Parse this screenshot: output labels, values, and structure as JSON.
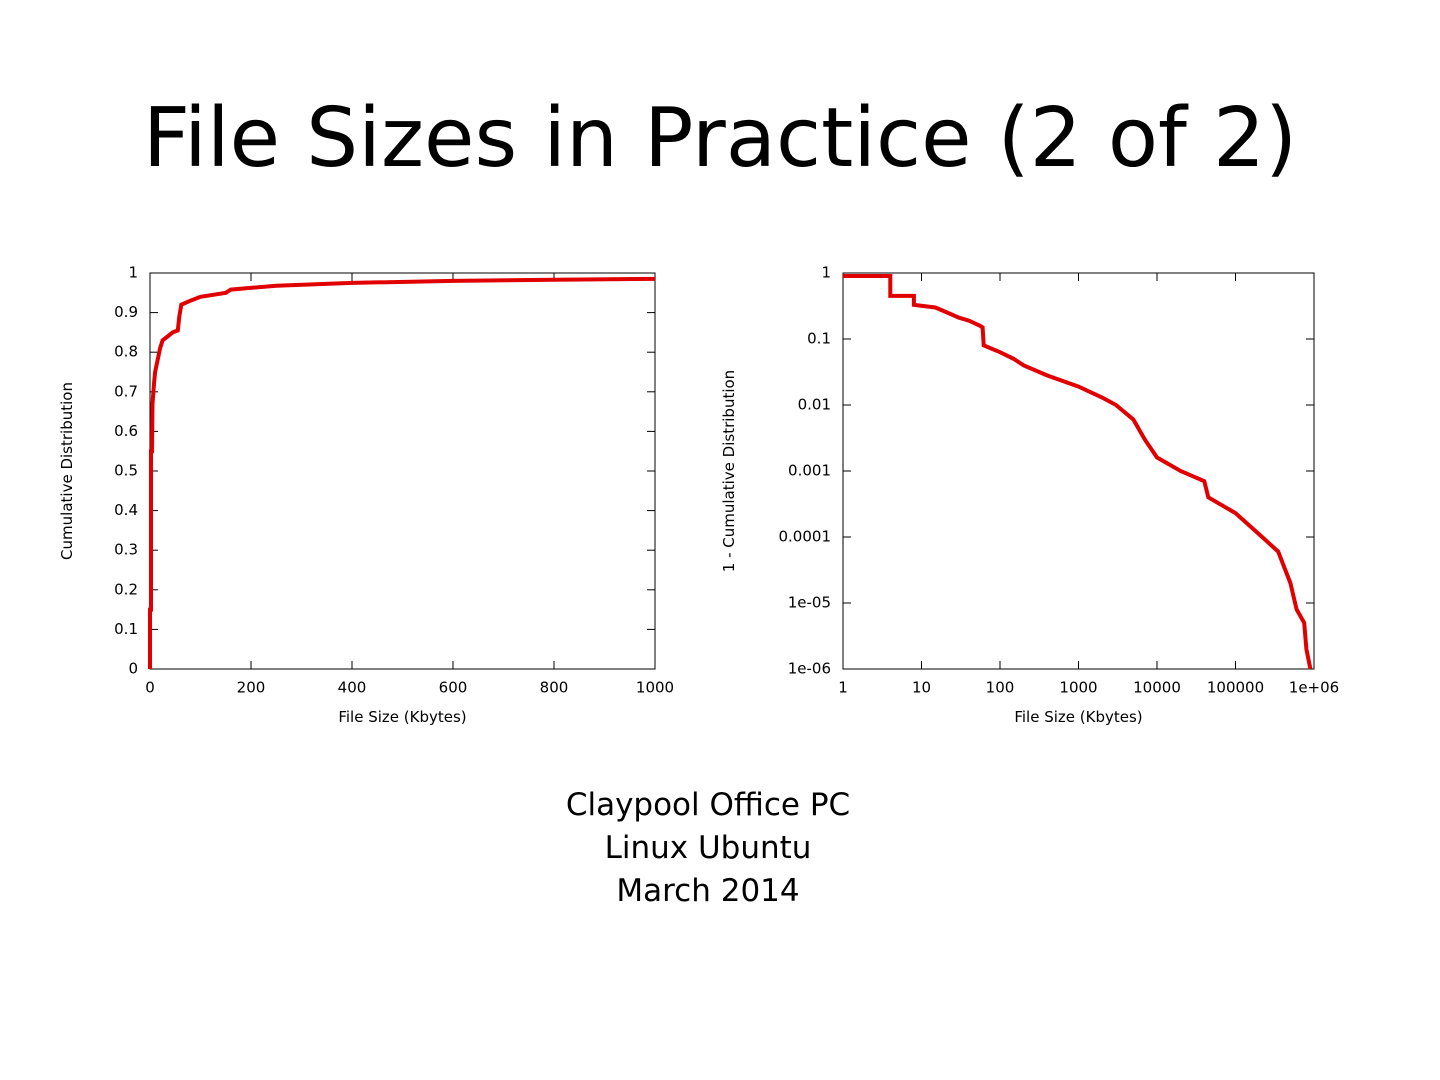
{
  "title": "File Sizes in Practice (2 of 2)",
  "chart_data": [
    {
      "type": "line",
      "xlabel": "File Size (Kbytes)",
      "ylabel": "Cumulative Distribution",
      "color": "#e00000",
      "x": [
        0,
        0,
        2,
        2,
        4,
        5,
        8,
        10,
        15,
        20,
        25,
        35,
        45,
        55,
        58,
        62,
        80,
        100,
        150,
        160,
        250,
        400,
        600,
        800,
        1000
      ],
      "values": [
        0,
        0.15,
        0.15,
        0.55,
        0.55,
        0.67,
        0.72,
        0.75,
        0.78,
        0.81,
        0.83,
        0.84,
        0.85,
        0.855,
        0.89,
        0.92,
        0.93,
        0.94,
        0.95,
        0.958,
        0.968,
        0.975,
        0.98,
        0.983,
        0.985
      ],
      "xlim": [
        0,
        1000
      ],
      "ylim": [
        0,
        1
      ],
      "xticks": [
        0,
        200,
        400,
        600,
        800,
        1000
      ],
      "yticks": [
        0,
        0.1,
        0.2,
        0.3,
        0.4,
        0.5,
        0.6,
        0.7,
        0.8,
        0.9,
        1
      ],
      "log": false
    },
    {
      "type": "line",
      "xlabel": "File Size (Kbytes)",
      "ylabel": "1 - Cumulative Distribution",
      "color": "#e00000",
      "x": [
        1,
        4,
        4,
        8,
        8,
        15,
        20,
        30,
        40,
        55,
        60,
        62,
        100,
        150,
        200,
        400,
        1000,
        2000,
        3000,
        5000,
        7000,
        10000,
        20000,
        40000,
        45000,
        100000,
        200000,
        350000,
        500000,
        600000,
        750000,
        800000,
        900000
      ],
      "values": [
        0.9,
        0.9,
        0.45,
        0.45,
        0.33,
        0.3,
        0.26,
        0.21,
        0.19,
        0.16,
        0.15,
        0.08,
        0.063,
        0.05,
        0.04,
        0.028,
        0.019,
        0.013,
        0.01,
        0.006,
        0.003,
        0.0016,
        0.001,
        0.0007,
        0.0004,
        0.00023,
        0.00011,
        6e-05,
        2e-05,
        8e-06,
        5e-06,
        2e-06,
        1e-06
      ],
      "xlim": [
        1,
        1000000
      ],
      "ylim": [
        1e-06,
        1
      ],
      "xticks": [
        1,
        10,
        100,
        1000,
        10000,
        100000,
        {
          "value": 1000000,
          "label": "1e+06"
        }
      ],
      "yticks": [
        {
          "value": 1e-06,
          "label": "1e-06"
        },
        {
          "value": 1e-05,
          "label": "1e-05"
        },
        0.0001,
        0.001,
        0.01,
        0.1,
        1
      ],
      "log": true
    }
  ],
  "caption": [
    "Claypool Office PC",
    "Linux Ubuntu",
    "March 2014"
  ]
}
